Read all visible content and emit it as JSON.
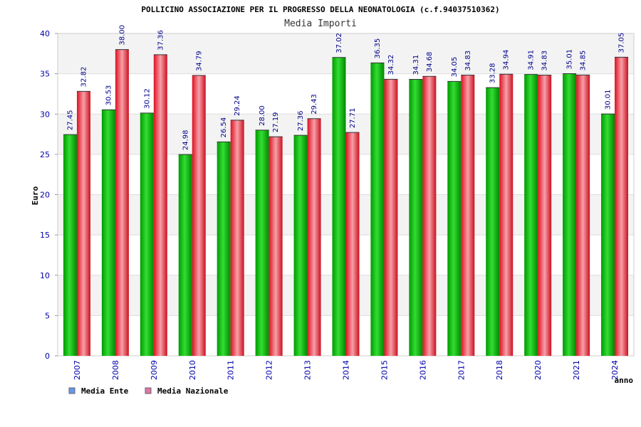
{
  "chart_data": {
    "type": "bar",
    "title": "POLLICINO ASSOCIAZIONE PER IL PROGRESSO DELLA NEONATOLOGIA (c.f.94037510362)",
    "subtitle": "Media Importi",
    "xlabel": "anno",
    "ylabel": "Euro",
    "ylim": [
      0,
      40
    ],
    "yticks": [
      0,
      5,
      10,
      15,
      20,
      25,
      30,
      35,
      40
    ],
    "grid": true,
    "legend_position": "bottom-left",
    "categories": [
      "2007",
      "2008",
      "2009",
      "2010",
      "2011",
      "2012",
      "2013",
      "2014",
      "2015",
      "2016",
      "2017",
      "2018",
      "2020",
      "2021",
      "2024"
    ],
    "series": [
      {
        "name": "Media Ente",
        "color": "#00b400",
        "legend_color": "#6699ee",
        "values": [
          27.45,
          30.53,
          30.12,
          24.98,
          26.54,
          28.0,
          27.36,
          37.02,
          36.35,
          34.31,
          34.05,
          33.28,
          34.91,
          35.01,
          30.01
        ],
        "labels": [
          "27.45",
          "30.53",
          "30.12",
          "24.98",
          "26.54",
          "28.00",
          "27.36",
          "37.02",
          "36.35",
          "34.31",
          "34.05",
          "33.28",
          "34.91",
          "35.01",
          "30.01"
        ]
      },
      {
        "name": "Media Nazionale",
        "color": "#e0303c",
        "legend_color": "#dd77aa",
        "values": [
          32.82,
          38.0,
          37.36,
          34.79,
          29.24,
          27.19,
          29.43,
          27.71,
          34.32,
          34.68,
          34.83,
          34.94,
          34.83,
          34.85,
          37.05
        ],
        "labels": [
          "32.82",
          "38.00",
          "37.36",
          "34.79",
          "29.24",
          "27.19",
          "29.43",
          "27.71",
          "34.32",
          "34.68",
          "34.83",
          "34.94",
          "34.83",
          "34.85",
          "37.05"
        ]
      }
    ]
  }
}
